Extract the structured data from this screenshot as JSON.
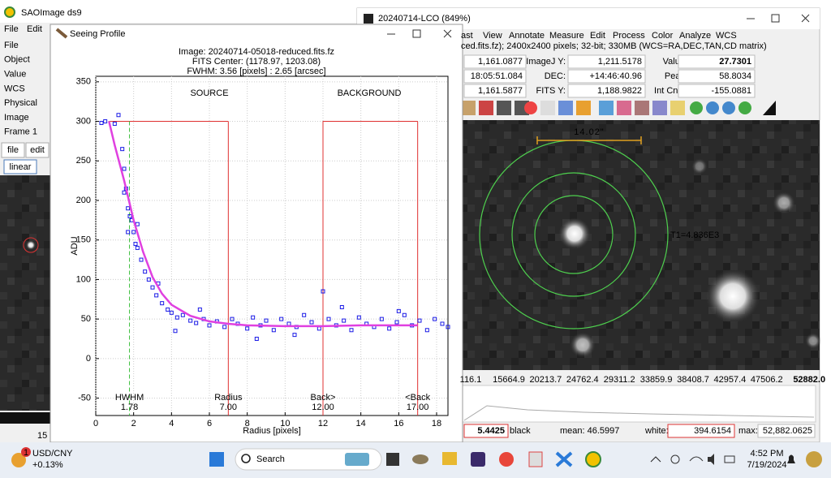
{
  "ds9": {
    "title": "SAOImage ds9",
    "menu": [
      "File",
      "Edit"
    ],
    "info_labels": [
      "File",
      "Object",
      "Value",
      "WCS",
      "Physical",
      "Image",
      "Frame 1"
    ],
    "buttons": [
      "file",
      "edit"
    ],
    "scale": "linear",
    "colorbar_label": "15"
  },
  "main_window": {
    "title": "20240714-LCO (849%)",
    "menu": [
      "ast",
      "View",
      "Annotate",
      "Measure",
      "Edit",
      "Process",
      "Color",
      "Analyze",
      "WCS"
    ],
    "file_info": "ced.fits.fz); 2400x2400 pixels; 32-bit; 330MB (WCS=RA,DEC,TAN,CD matrix)",
    "info_rows": [
      [
        "1,161.0877",
        "ImageJ Y:",
        "1,211.5178",
        "Value:",
        "27.7301"
      ],
      [
        "18:05:51.084",
        "DEC:",
        "+14:46:40.96",
        "Peak:",
        "58.8034"
      ],
      [
        "1,161.5877",
        "FITS Y:",
        "1,188.9822",
        "Int Cnts:",
        "-155.0881"
      ]
    ],
    "scale_bar": "14.02\"",
    "region_label": "T1=4.836E3",
    "colorbar_ticks": [
      "116.1",
      "15664.9",
      "20213.7",
      "24762.4",
      "29311.2",
      "33859.9",
      "38408.7",
      "42957.4",
      "47506.2",
      "52882.0"
    ],
    "stats": {
      "low": "5.4425",
      "low_label": "black",
      "mean": "mean: 46.5997",
      "white_label": "white:",
      "white": "394.6154",
      "max_label": "max:",
      "max": "52,882.0625"
    }
  },
  "profile_window": {
    "title": "Seeing Profile",
    "chart_data": {
      "type": "scatter",
      "title": [
        "Image: 20240714-05018-reduced.fits.fz",
        "FITS Center: (1178.97,  1203.08)",
        "FWHM: 3.56 [pixels] : 2.65 [arcsec]"
      ],
      "x_label": "Radius [pixels]",
      "y_label": "ADU",
      "xlim": [
        0,
        18.6
      ],
      "ylim": [
        -72,
        357
      ],
      "xticks": [
        0,
        2,
        4,
        6,
        8,
        10,
        12,
        14,
        16,
        18
      ],
      "yticks": [
        -50,
        0,
        50,
        100,
        150,
        200,
        250,
        300,
        350
      ],
      "grid": true,
      "series": [
        {
          "color": "#1a1ae6",
          "marker": "square",
          "x": [
            0.3,
            0.5,
            1.0,
            1.2,
            1.4,
            1.5,
            1.5,
            1.6,
            1.7,
            1.7,
            1.8,
            1.9,
            2.0,
            2.1,
            2.2,
            2.2,
            2.4,
            2.6,
            2.8,
            3.0,
            3.2,
            3.3,
            3.5,
            3.8,
            4.0,
            4.2,
            4.3,
            4.6,
            5.0,
            5.3,
            5.5,
            5.7,
            6.0,
            6.4,
            6.8,
            7.2,
            7.5,
            8.0,
            8.3,
            8.5,
            8.7,
            9.0,
            9.4,
            9.8,
            10.2,
            10.5,
            10.6,
            11.0,
            11.4,
            11.8,
            12.0,
            12.3,
            12.7,
            13.0,
            13.1,
            13.5,
            13.9,
            14.3,
            14.7,
            15.1,
            15.5,
            15.9,
            16.0,
            16.3,
            16.7,
            17.1,
            17.5,
            17.9,
            18.3,
            18.6
          ],
          "values": [
            298,
            300,
            297,
            308,
            265,
            240,
            210,
            215,
            190,
            160,
            180,
            175,
            160,
            145,
            140,
            170,
            125,
            110,
            100,
            90,
            80,
            95,
            70,
            62,
            58,
            35,
            52,
            55,
            48,
            45,
            62,
            50,
            42,
            47,
            40,
            50,
            44,
            38,
            52,
            25,
            42,
            48,
            36,
            50,
            44,
            30,
            40,
            55,
            46,
            38,
            85,
            50,
            42,
            65,
            48,
            36,
            52,
            44,
            40,
            50,
            38,
            46,
            60,
            55,
            42,
            48,
            36,
            50,
            44,
            40
          ]
        },
        {
          "color": "#e040e0",
          "style": "line",
          "x": [
            0.7,
            1,
            1.5,
            2,
            2.5,
            3,
            3.5,
            4,
            5,
            6,
            7,
            8,
            10,
            12,
            14,
            16,
            17
          ],
          "values": [
            300,
            270,
            225,
            175,
            135,
            103,
            82,
            68,
            54,
            47,
            44,
            42,
            41,
            41,
            42,
            42,
            42
          ]
        }
      ],
      "regions": [
        {
          "label": "SOURCE"
        },
        {
          "label": "BACKGROUND"
        }
      ],
      "region_top": 300,
      "markers": [
        {
          "label": "HWHM",
          "value": 1.78,
          "value_label": "1.78",
          "color": "#40c040"
        },
        {
          "label": "Radius",
          "value": 7,
          "value_label": "7.00",
          "color": "#e03030"
        },
        {
          "label": "Back>",
          "value": 12,
          "value_label": "12.00",
          "color": "#e03030"
        },
        {
          "label": "<Back",
          "value": 17,
          "value_label": "17.00",
          "color": "#e03030"
        }
      ]
    }
  },
  "taskbar": {
    "badge": "1",
    "widget": "USD/CNY",
    "change": "+0.13%",
    "search": "Search",
    "time": "4:52 PM",
    "date": "7/19/2024"
  }
}
